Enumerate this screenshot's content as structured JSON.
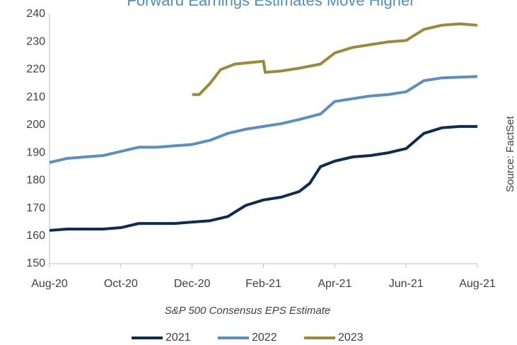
{
  "chart_data": {
    "type": "line",
    "title": "Forward Earnings Estimates Move Higher",
    "x_label": "S&P 500 Consensus EPS Estimate",
    "source": "Source: FactSet",
    "xlim": [
      0,
      12
    ],
    "xticks": [
      {
        "value": 0,
        "label": "Aug-20"
      },
      {
        "value": 2,
        "label": "Oct-20"
      },
      {
        "value": 4,
        "label": "Dec-20"
      },
      {
        "value": 6,
        "label": "Feb-21"
      },
      {
        "value": 8,
        "label": "Apr-21"
      },
      {
        "value": 10,
        "label": "Jun-21"
      },
      {
        "value": 12,
        "label": "Aug-21"
      }
    ],
    "ylim": [
      150,
      240
    ],
    "yticks": [
      150,
      160,
      170,
      180,
      190,
      200,
      210,
      220,
      230,
      240
    ],
    "legend": "bottom",
    "series": [
      {
        "name": "2021",
        "color": "#0d2c4f",
        "x": [
          0,
          0.5,
          1,
          1.5,
          2,
          2.5,
          3,
          3.5,
          4,
          4.5,
          5,
          5.5,
          6,
          6.5,
          7,
          7.3,
          7.6,
          8,
          8.5,
          9,
          9.5,
          10,
          10.5,
          11,
          11.5,
          12
        ],
        "values": [
          162,
          162.5,
          162.5,
          162.5,
          163,
          164.5,
          164.5,
          164.5,
          165,
          165.5,
          167,
          171,
          173,
          174,
          176,
          179,
          185,
          187,
          188.5,
          189,
          190,
          191.5,
          197,
          199,
          199.5,
          199.5
        ]
      },
      {
        "name": "2022",
        "color": "#5b8fc0",
        "x": [
          0,
          0.5,
          1,
          1.5,
          2,
          2.5,
          3,
          3.5,
          4,
          4.5,
          5,
          5.5,
          6,
          6.5,
          7,
          7.6,
          8,
          8.5,
          9,
          9.5,
          10,
          10.5,
          11,
          12
        ],
        "values": [
          186.5,
          188,
          188.5,
          189,
          190.5,
          192,
          192,
          192.5,
          193,
          194.5,
          197,
          198.5,
          199.5,
          200.5,
          202,
          204,
          208.5,
          209.5,
          210.5,
          211,
          212,
          216,
          217,
          217.5
        ]
      },
      {
        "name": "2023",
        "color": "#9c8a3a",
        "x": [
          4,
          4.2,
          4.5,
          4.8,
          5.2,
          6,
          6.05,
          6.5,
          7,
          7.6,
          8,
          8.5,
          9,
          9.5,
          10,
          10.5,
          11,
          11.5,
          12
        ],
        "values": [
          211,
          211,
          215,
          220,
          222,
          223,
          219,
          219.5,
          220.5,
          222,
          226,
          228,
          229,
          230,
          230.5,
          234.5,
          236,
          236.5,
          236
        ]
      }
    ]
  }
}
